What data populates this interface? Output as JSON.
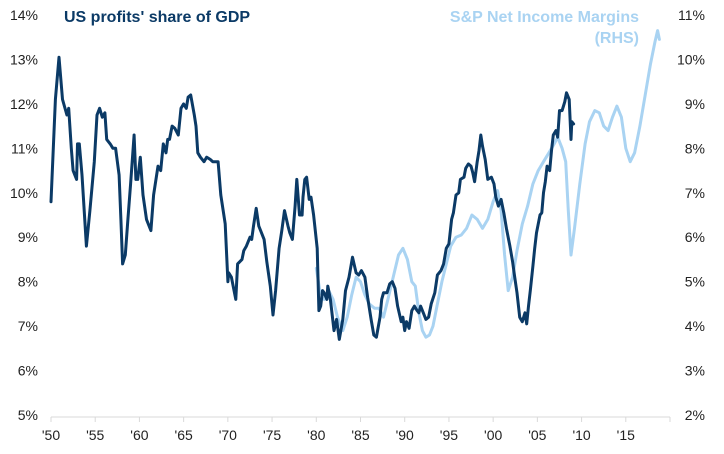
{
  "chart_data": {
    "type": "line",
    "title": "",
    "xlabel": "",
    "ylabel": "",
    "xlim": [
      1950,
      2020
    ],
    "x_ticks": [
      "'50",
      "'55",
      "'60",
      "'65",
      "'70",
      "'75",
      "'80",
      "'85",
      "'90",
      "'95",
      "'00",
      "'05",
      "'10",
      "'15"
    ],
    "x_tick_years": [
      1950,
      1955,
      1960,
      1965,
      1970,
      1975,
      1980,
      1985,
      1990,
      1995,
      2000,
      2005,
      2010,
      2015
    ],
    "ylim_left": [
      5,
      14
    ],
    "y_ticks_left": [
      "5%",
      "6%",
      "7%",
      "8%",
      "9%",
      "10%",
      "11%",
      "12%",
      "13%",
      "14%"
    ],
    "ylim_right": [
      2,
      11
    ],
    "y_ticks_right": [
      "2%",
      "3%",
      "4%",
      "5%",
      "6%",
      "7%",
      "8%",
      "9%",
      "10%",
      "11%"
    ],
    "grid": false,
    "series": [
      {
        "name": "US profits' share of GDP",
        "axis": "left",
        "color": "#0b3a66",
        "label_position": "top-left",
        "points": [
          [
            1950.0,
            9.8
          ],
          [
            1950.5,
            12.1
          ],
          [
            1950.9,
            13.05
          ],
          [
            1951.3,
            12.1
          ],
          [
            1951.8,
            11.75
          ],
          [
            1952.0,
            11.9
          ],
          [
            1952.3,
            11.0
          ],
          [
            1952.5,
            10.5
          ],
          [
            1952.9,
            10.3
          ],
          [
            1953.0,
            11.1
          ],
          [
            1953.2,
            11.1
          ],
          [
            1953.5,
            10.4
          ],
          [
            1954.0,
            8.8
          ],
          [
            1954.4,
            9.6
          ],
          [
            1954.9,
            10.7
          ],
          [
            1955.2,
            11.75
          ],
          [
            1955.5,
            11.9
          ],
          [
            1955.8,
            11.7
          ],
          [
            1956.1,
            11.8
          ],
          [
            1956.3,
            11.2
          ],
          [
            1956.7,
            11.1
          ],
          [
            1957.0,
            11.0
          ],
          [
            1957.3,
            11.0
          ],
          [
            1957.7,
            10.4
          ],
          [
            1957.9,
            9.4
          ],
          [
            1958.1,
            8.4
          ],
          [
            1958.4,
            8.6
          ],
          [
            1958.7,
            9.4
          ],
          [
            1959.0,
            10.2
          ],
          [
            1959.4,
            11.3
          ],
          [
            1959.6,
            10.3
          ],
          [
            1959.8,
            10.3
          ],
          [
            1960.1,
            10.8
          ],
          [
            1960.4,
            9.95
          ],
          [
            1960.8,
            9.4
          ],
          [
            1961.3,
            9.15
          ],
          [
            1961.6,
            9.95
          ],
          [
            1962.1,
            10.6
          ],
          [
            1962.4,
            10.5
          ],
          [
            1962.7,
            11.1
          ],
          [
            1963.0,
            10.9
          ],
          [
            1963.2,
            11.2
          ],
          [
            1963.4,
            11.2
          ],
          [
            1963.7,
            11.5
          ],
          [
            1964.0,
            11.45
          ],
          [
            1964.4,
            11.3
          ],
          [
            1964.7,
            11.9
          ],
          [
            1965.0,
            12.0
          ],
          [
            1965.3,
            11.9
          ],
          [
            1965.5,
            12.15
          ],
          [
            1965.8,
            12.2
          ],
          [
            1966.2,
            11.75
          ],
          [
            1966.4,
            11.5
          ],
          [
            1966.6,
            10.9
          ],
          [
            1966.9,
            10.8
          ],
          [
            1967.3,
            10.7
          ],
          [
            1967.6,
            10.8
          ],
          [
            1968.0,
            10.75
          ],
          [
            1968.3,
            10.7
          ],
          [
            1968.9,
            10.7
          ],
          [
            1969.2,
            9.95
          ],
          [
            1969.7,
            9.3
          ],
          [
            1970.0,
            8.0
          ],
          [
            1970.1,
            8.2
          ],
          [
            1970.4,
            8.1
          ],
          [
            1970.9,
            7.6
          ],
          [
            1971.1,
            8.4
          ],
          [
            1971.6,
            8.5
          ],
          [
            1971.8,
            8.7
          ],
          [
            1972.1,
            8.8
          ],
          [
            1972.5,
            9.0
          ],
          [
            1972.7,
            8.95
          ],
          [
            1972.9,
            9.25
          ],
          [
            1973.2,
            9.65
          ],
          [
            1973.5,
            9.25
          ],
          [
            1973.7,
            9.15
          ],
          [
            1974.1,
            8.95
          ],
          [
            1974.4,
            8.45
          ],
          [
            1974.8,
            7.9
          ],
          [
            1975.1,
            7.25
          ],
          [
            1975.4,
            7.8
          ],
          [
            1975.8,
            8.75
          ],
          [
            1976.1,
            9.15
          ],
          [
            1976.4,
            9.6
          ],
          [
            1976.8,
            9.25
          ],
          [
            1977.0,
            9.1
          ],
          [
            1977.3,
            8.95
          ],
          [
            1977.6,
            9.7
          ],
          [
            1977.8,
            10.3
          ],
          [
            1978.1,
            9.5
          ],
          [
            1978.4,
            9.5
          ],
          [
            1978.5,
            9.9
          ],
          [
            1978.7,
            10.3
          ],
          [
            1978.9,
            10.35
          ],
          [
            1979.2,
            9.85
          ],
          [
            1979.4,
            9.9
          ],
          [
            1979.7,
            9.5
          ],
          [
            1980.1,
            8.75
          ],
          [
            1980.3,
            7.35
          ],
          [
            1980.5,
            7.45
          ],
          [
            1980.7,
            7.8
          ],
          [
            1980.9,
            7.75
          ],
          [
            1981.2,
            7.6
          ],
          [
            1981.3,
            7.9
          ],
          [
            1981.6,
            7.6
          ],
          [
            1982.0,
            6.9
          ],
          [
            1982.3,
            7.15
          ],
          [
            1982.6,
            6.7
          ],
          [
            1983.0,
            7.15
          ],
          [
            1983.3,
            7.8
          ],
          [
            1983.7,
            8.1
          ],
          [
            1984.1,
            8.55
          ],
          [
            1984.5,
            8.2
          ],
          [
            1984.8,
            8.15
          ],
          [
            1985.1,
            8.25
          ],
          [
            1985.5,
            8.1
          ],
          [
            1985.8,
            7.65
          ],
          [
            1986.2,
            7.15
          ],
          [
            1986.5,
            6.8
          ],
          [
            1986.8,
            6.75
          ],
          [
            1987.2,
            7.2
          ],
          [
            1987.4,
            7.6
          ],
          [
            1987.6,
            7.75
          ],
          [
            1988.0,
            7.75
          ],
          [
            1988.3,
            7.95
          ],
          [
            1988.6,
            8.0
          ],
          [
            1988.9,
            7.85
          ],
          [
            1989.2,
            7.45
          ],
          [
            1989.6,
            7.1
          ],
          [
            1989.8,
            7.2
          ],
          [
            1990.0,
            6.9
          ],
          [
            1990.2,
            7.1
          ],
          [
            1990.5,
            6.95
          ],
          [
            1990.8,
            7.35
          ],
          [
            1991.1,
            7.45
          ],
          [
            1991.4,
            7.35
          ],
          [
            1991.6,
            7.3
          ],
          [
            1991.8,
            7.45
          ],
          [
            1992.1,
            7.3
          ],
          [
            1992.4,
            7.15
          ],
          [
            1992.7,
            7.2
          ],
          [
            1993.0,
            7.5
          ],
          [
            1993.4,
            7.75
          ],
          [
            1993.7,
            8.15
          ],
          [
            1994.1,
            8.25
          ],
          [
            1994.4,
            8.4
          ],
          [
            1994.7,
            8.75
          ],
          [
            1995.0,
            8.85
          ],
          [
            1995.3,
            9.4
          ],
          [
            1995.5,
            9.55
          ],
          [
            1995.8,
            9.95
          ],
          [
            1996.1,
            10.0
          ],
          [
            1996.3,
            10.3
          ],
          [
            1996.7,
            10.35
          ],
          [
            1996.9,
            10.55
          ],
          [
            1997.2,
            10.65
          ],
          [
            1997.5,
            10.6
          ],
          [
            1997.7,
            10.45
          ],
          [
            1997.9,
            10.25
          ],
          [
            1998.2,
            10.7
          ],
          [
            1998.4,
            10.95
          ],
          [
            1998.6,
            11.3
          ],
          [
            1998.8,
            11.05
          ],
          [
            1999.1,
            10.75
          ],
          [
            1999.4,
            10.3
          ],
          [
            1999.8,
            10.35
          ],
          [
            2000.1,
            10.2
          ],
          [
            2000.3,
            9.9
          ],
          [
            2000.6,
            9.7
          ],
          [
            2000.9,
            9.85
          ],
          [
            2001.2,
            9.55
          ],
          [
            2001.5,
            9.2
          ],
          [
            2001.9,
            8.8
          ],
          [
            2002.2,
            8.45
          ],
          [
            2002.4,
            8.15
          ],
          [
            2002.7,
            7.75
          ],
          [
            2003.0,
            7.2
          ],
          [
            2003.3,
            7.1
          ],
          [
            2003.6,
            7.3
          ],
          [
            2003.8,
            7.05
          ],
          [
            2004.0,
            7.45
          ],
          [
            2004.2,
            7.8
          ],
          [
            2004.5,
            8.35
          ],
          [
            2004.7,
            8.75
          ],
          [
            2004.9,
            9.1
          ],
          [
            2005.3,
            9.5
          ],
          [
            2005.5,
            9.55
          ],
          [
            2005.7,
            10.0
          ],
          [
            2005.9,
            10.25
          ],
          [
            2006.1,
            10.6
          ],
          [
            2006.4,
            10.5
          ],
          [
            2006.6,
            10.95
          ],
          [
            2006.8,
            11.3
          ],
          [
            2007.1,
            11.4
          ],
          [
            2007.3,
            11.25
          ],
          [
            2007.5,
            11.85
          ],
          [
            2007.8,
            11.85
          ],
          [
            2008.1,
            12.05
          ],
          [
            2008.3,
            12.25
          ],
          [
            2008.6,
            12.1
          ],
          [
            2008.8,
            11.2
          ],
          [
            2008.9,
            11.6
          ],
          [
            2009.1,
            11.55
          ]
        ]
      },
      {
        "name": "S&P Net Income Margins (RHS)",
        "axis": "right",
        "color": "#a9d3f2",
        "label_position": "top-right",
        "points": [
          [
            1980.0,
            5.3
          ],
          [
            1980.4,
            4.8
          ],
          [
            1980.9,
            4.6
          ],
          [
            1981.4,
            4.8
          ],
          [
            1981.9,
            4.6
          ],
          [
            1982.4,
            4.2
          ],
          [
            1983.0,
            3.9
          ],
          [
            1983.5,
            4.2
          ],
          [
            1984.0,
            4.7
          ],
          [
            1984.5,
            5.1
          ],
          [
            1985.0,
            5.0
          ],
          [
            1985.5,
            4.7
          ],
          [
            1986.0,
            4.5
          ],
          [
            1986.6,
            4.4
          ],
          [
            1987.1,
            4.4
          ],
          [
            1987.6,
            4.2
          ],
          [
            1988.1,
            4.6
          ],
          [
            1988.7,
            5.1
          ],
          [
            1989.3,
            5.6
          ],
          [
            1989.8,
            5.75
          ],
          [
            1990.3,
            5.5
          ],
          [
            1990.8,
            5.0
          ],
          [
            1991.2,
            4.9
          ],
          [
            1991.6,
            4.3
          ],
          [
            1992.0,
            3.9
          ],
          [
            1992.4,
            3.75
          ],
          [
            1992.8,
            3.8
          ],
          [
            1993.2,
            4.0
          ],
          [
            1993.7,
            4.5
          ],
          [
            1994.2,
            5.0
          ],
          [
            1994.7,
            5.4
          ],
          [
            1995.2,
            5.8
          ],
          [
            1995.8,
            6.0
          ],
          [
            1996.4,
            6.05
          ],
          [
            1997.0,
            6.2
          ],
          [
            1997.6,
            6.5
          ],
          [
            1998.2,
            6.4
          ],
          [
            1998.8,
            6.2
          ],
          [
            1999.4,
            6.4
          ],
          [
            2000.0,
            6.8
          ],
          [
            2000.5,
            7.05
          ],
          [
            2000.9,
            6.6
          ],
          [
            2001.3,
            5.6
          ],
          [
            2001.7,
            4.8
          ],
          [
            2002.2,
            5.1
          ],
          [
            2002.7,
            5.7
          ],
          [
            2003.3,
            6.3
          ],
          [
            2003.9,
            6.7
          ],
          [
            2004.5,
            7.2
          ],
          [
            2005.1,
            7.5
          ],
          [
            2005.7,
            7.7
          ],
          [
            2006.3,
            7.9
          ],
          [
            2006.9,
            8.1
          ],
          [
            2007.3,
            8.25
          ],
          [
            2007.8,
            8.0
          ],
          [
            2008.2,
            7.7
          ],
          [
            2008.5,
            6.6
          ],
          [
            2008.8,
            5.6
          ],
          [
            2009.2,
            6.2
          ],
          [
            2009.8,
            7.2
          ],
          [
            2010.4,
            8.1
          ],
          [
            2010.9,
            8.6
          ],
          [
            2011.5,
            8.85
          ],
          [
            2012.0,
            8.8
          ],
          [
            2012.5,
            8.5
          ],
          [
            2013.0,
            8.4
          ],
          [
            2013.5,
            8.7
          ],
          [
            2014.0,
            8.95
          ],
          [
            2014.5,
            8.7
          ],
          [
            2015.0,
            8.0
          ],
          [
            2015.5,
            7.7
          ],
          [
            2016.0,
            7.9
          ],
          [
            2016.6,
            8.5
          ],
          [
            2017.2,
            9.2
          ],
          [
            2017.8,
            9.9
          ],
          [
            2018.3,
            10.4
          ],
          [
            2018.6,
            10.65
          ],
          [
            2018.8,
            10.45
          ]
        ]
      }
    ]
  }
}
